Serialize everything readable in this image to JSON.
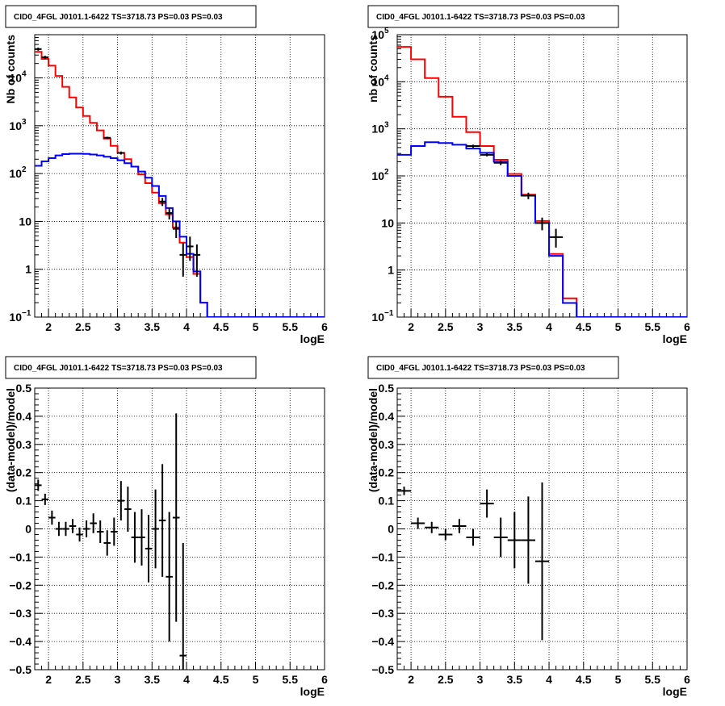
{
  "chart_data": [
    {
      "type": "line",
      "title": "CID0_4FGL J0101.1-6422 TS=3718.73 PS=0.03 PS=0.03",
      "xlabel": "logE",
      "ylabel": "Nb of counts",
      "xlim": [
        1.8,
        6
      ],
      "ylim": [
        0.1,
        80000
      ],
      "yscale": "log",
      "grid": true,
      "xticks": [
        2,
        2.5,
        3,
        3.5,
        4,
        4.5,
        5,
        5.5,
        6
      ],
      "yticks": [
        {
          "v": 0.1,
          "mant": "10",
          "exp": "−1"
        },
        {
          "v": 1,
          "mant": "1",
          "exp": ""
        },
        {
          "v": 10,
          "mant": "10",
          "exp": ""
        },
        {
          "v": 100,
          "mant": "10",
          "exp": "2"
        },
        {
          "v": 1000,
          "mant": "10",
          "exp": "3"
        },
        {
          "v": 10000,
          "mant": "10",
          "exp": "4"
        }
      ],
      "bin_edges": [
        1.8,
        1.9,
        2.0,
        2.1,
        2.2,
        2.3,
        2.4,
        2.5,
        2.6,
        2.7,
        2.8,
        2.9,
        3.0,
        3.1,
        3.2,
        3.3,
        3.4,
        3.5,
        3.6,
        3.7,
        3.8,
        3.9,
        4.0,
        4.1,
        4.2,
        4.3
      ],
      "series": [
        {
          "color": "#ff0000",
          "values": [
            35000,
            25000,
            18000,
            11000,
            6500,
            3900,
            2400,
            1600,
            1150,
            800,
            540,
            380,
            270,
            200,
            140,
            96,
            63,
            40,
            24,
            14,
            7.5,
            3.6,
            1.8,
            0.8,
            0.2
          ]
        },
        {
          "color": "#0000ff",
          "values": [
            145,
            180,
            210,
            240,
            255,
            260,
            260,
            258,
            250,
            240,
            225,
            210,
            190,
            165,
            140,
            110,
            82,
            55,
            34,
            19,
            10,
            4.8,
            2.1,
            0.9,
            0.2
          ]
        }
      ],
      "points": [
        {
          "x": 1.85,
          "y": 40000,
          "lo": 37000,
          "hi": 43000
        },
        {
          "x": 1.95,
          "y": 27000,
          "lo": 25000,
          "hi": 29000
        },
        {
          "x": 2.85,
          "y": 560,
          "lo": 530,
          "hi": 590
        },
        {
          "x": 3.05,
          "y": 270,
          "lo": 250,
          "hi": 290
        },
        {
          "x": 3.65,
          "y": 26,
          "lo": 21,
          "hi": 31
        },
        {
          "x": 3.75,
          "y": 15,
          "lo": 11,
          "hi": 19
        },
        {
          "x": 3.85,
          "y": 7,
          "lo": 4.5,
          "hi": 10
        },
        {
          "x": 3.95,
          "y": 2,
          "lo": 0.7,
          "hi": 3.5
        },
        {
          "x": 4.05,
          "y": 3,
          "lo": 1.5,
          "hi": 4.8
        },
        {
          "x": 4.15,
          "y": 2,
          "lo": 0.7,
          "hi": 3.3
        }
      ]
    },
    {
      "type": "line",
      "title": "CID0_4FGL J0101.1-6422 TS=3718.73 PS=0.03 PS=0.03",
      "xlabel": "logE",
      "ylabel": "nb of counts",
      "xlim": [
        1.8,
        6
      ],
      "ylim": [
        0.1,
        100000
      ],
      "yscale": "log",
      "grid": true,
      "xticks": [
        2,
        2.5,
        3,
        3.5,
        4,
        4.5,
        5,
        5.5,
        6
      ],
      "yticks": [
        {
          "v": 0.1,
          "mant": "10",
          "exp": "−1"
        },
        {
          "v": 1,
          "mant": "1",
          "exp": ""
        },
        {
          "v": 10,
          "mant": "10",
          "exp": ""
        },
        {
          "v": 100,
          "mant": "10",
          "exp": "2"
        },
        {
          "v": 1000,
          "mant": "10",
          "exp": "3"
        },
        {
          "v": 10000,
          "mant": "10",
          "exp": "4"
        },
        {
          "v": 100000,
          "mant": "10",
          "exp": "5"
        }
      ],
      "bin_edges": [
        1.8,
        2.0,
        2.2,
        2.4,
        2.6,
        2.8,
        3.0,
        3.2,
        3.4,
        3.6,
        3.8,
        4.0,
        4.2,
        4.4
      ],
      "series": [
        {
          "color": "#ff0000",
          "values": [
            55000,
            30000,
            12000,
            4800,
            1800,
            850,
            430,
            220,
            110,
            40,
            11,
            2.2,
            0.25
          ]
        },
        {
          "color": "#0000ff",
          "values": [
            280,
            430,
            520,
            500,
            460,
            380,
            310,
            200,
            100,
            38,
            10,
            2.0,
            0.2
          ]
        }
      ],
      "points": [
        {
          "x": 2.9,
          "y": 430,
          "lo": 400,
          "hi": 460
        },
        {
          "x": 3.1,
          "y": 280,
          "lo": 260,
          "hi": 300
        },
        {
          "x": 3.3,
          "y": 190,
          "lo": 170,
          "hi": 210
        },
        {
          "x": 3.7,
          "y": 38,
          "lo": 32,
          "hi": 44
        },
        {
          "x": 3.9,
          "y": 10,
          "lo": 7,
          "hi": 13
        },
        {
          "x": 4.1,
          "y": 5,
          "lo": 3,
          "hi": 7.5
        }
      ]
    },
    {
      "type": "scatter",
      "title": "CID0_4FGL J0101.1-6422 TS=3718.73 PS=0.03 PS=0.03",
      "xlabel": "logE",
      "ylabel": "(data-model)/model",
      "xlim": [
        1.8,
        6
      ],
      "ylim": [
        -0.5,
        0.5
      ],
      "yscale": "linear",
      "grid": true,
      "xticks": [
        2,
        2.5,
        3,
        3.5,
        4,
        4.5,
        5,
        5.5,
        6
      ],
      "yticks": [
        {
          "v": -0.5,
          "mant": "−0.5",
          "exp": ""
        },
        {
          "v": -0.4,
          "mant": "−0.4",
          "exp": ""
        },
        {
          "v": -0.3,
          "mant": "−0.3",
          "exp": ""
        },
        {
          "v": -0.2,
          "mant": "−0.2",
          "exp": ""
        },
        {
          "v": -0.1,
          "mant": "−0.1",
          "exp": ""
        },
        {
          "v": 0,
          "mant": "0",
          "exp": ""
        },
        {
          "v": 0.1,
          "mant": "0.1",
          "exp": ""
        },
        {
          "v": 0.2,
          "mant": "0.2",
          "exp": ""
        },
        {
          "v": 0.3,
          "mant": "0.3",
          "exp": ""
        },
        {
          "v": 0.4,
          "mant": "0.4",
          "exp": ""
        },
        {
          "v": 0.5,
          "mant": "0.5",
          "exp": ""
        }
      ],
      "bin_width": 0.1,
      "points": [
        {
          "x": 1.85,
          "y": 0.155,
          "err": 0.02
        },
        {
          "x": 1.95,
          "y": 0.105,
          "err": 0.02
        },
        {
          "x": 2.05,
          "y": 0.04,
          "err": 0.025
        },
        {
          "x": 2.15,
          "y": 0.0,
          "err": 0.025
        },
        {
          "x": 2.25,
          "y": 0.0,
          "err": 0.025
        },
        {
          "x": 2.35,
          "y": 0.01,
          "err": 0.025
        },
        {
          "x": 2.45,
          "y": -0.02,
          "err": 0.025
        },
        {
          "x": 2.55,
          "y": 0.0,
          "err": 0.03
        },
        {
          "x": 2.65,
          "y": 0.02,
          "err": 0.035
        },
        {
          "x": 2.75,
          "y": -0.01,
          "err": 0.04
        },
        {
          "x": 2.85,
          "y": -0.05,
          "err": 0.045
        },
        {
          "x": 2.95,
          "y": -0.01,
          "err": 0.05
        },
        {
          "x": 3.05,
          "y": 0.1,
          "err": 0.07
        },
        {
          "x": 3.15,
          "y": 0.07,
          "err": 0.08
        },
        {
          "x": 3.25,
          "y": -0.03,
          "err": 0.09
        },
        {
          "x": 3.35,
          "y": -0.03,
          "err": 0.1
        },
        {
          "x": 3.45,
          "y": -0.07,
          "err": 0.12
        },
        {
          "x": 3.55,
          "y": 0.0,
          "err": 0.14
        },
        {
          "x": 3.65,
          "y": 0.03,
          "err": 0.2
        },
        {
          "x": 3.75,
          "y": -0.17,
          "err": 0.23
        },
        {
          "x": 3.85,
          "y": 0.04,
          "err": 0.37
        },
        {
          "x": 3.95,
          "y": -0.45,
          "err": 0.4
        }
      ]
    },
    {
      "type": "scatter",
      "title": "CID0_4FGL J0101.1-6422 TS=3718.73 PS=0.03 PS=0.03",
      "xlabel": "logE",
      "ylabel": "(data-model)/model",
      "xlim": [
        1.8,
        6
      ],
      "ylim": [
        -0.5,
        0.5
      ],
      "yscale": "linear",
      "grid": true,
      "xticks": [
        2,
        2.5,
        3,
        3.5,
        4,
        4.5,
        5,
        5.5,
        6
      ],
      "yticks": [
        {
          "v": -0.5,
          "mant": "−0.5",
          "exp": ""
        },
        {
          "v": -0.4,
          "mant": "−0.4",
          "exp": ""
        },
        {
          "v": -0.3,
          "mant": "−0.3",
          "exp": ""
        },
        {
          "v": -0.2,
          "mant": "−0.2",
          "exp": ""
        },
        {
          "v": -0.1,
          "mant": "−0.1",
          "exp": ""
        },
        {
          "v": 0,
          "mant": "0",
          "exp": ""
        },
        {
          "v": 0.1,
          "mant": "0.1",
          "exp": ""
        },
        {
          "v": 0.2,
          "mant": "0.2",
          "exp": ""
        },
        {
          "v": 0.3,
          "mant": "0.3",
          "exp": ""
        },
        {
          "v": 0.4,
          "mant": "0.4",
          "exp": ""
        },
        {
          "v": 0.5,
          "mant": "0.5",
          "exp": ""
        }
      ],
      "bin_width": 0.2,
      "points": [
        {
          "x": 1.9,
          "y": 0.135,
          "err": 0.015
        },
        {
          "x": 2.1,
          "y": 0.02,
          "err": 0.02
        },
        {
          "x": 2.3,
          "y": 0.005,
          "err": 0.02
        },
        {
          "x": 2.5,
          "y": -0.02,
          "err": 0.02
        },
        {
          "x": 2.7,
          "y": 0.01,
          "err": 0.025
        },
        {
          "x": 2.9,
          "y": -0.03,
          "err": 0.03
        },
        {
          "x": 3.1,
          "y": 0.09,
          "err": 0.05
        },
        {
          "x": 3.3,
          "y": -0.03,
          "err": 0.07
        },
        {
          "x": 3.5,
          "y": -0.04,
          "err": 0.1
        },
        {
          "x": 3.7,
          "y": -0.04,
          "err": 0.155
        },
        {
          "x": 3.9,
          "y": -0.115,
          "err": 0.28
        }
      ]
    }
  ]
}
